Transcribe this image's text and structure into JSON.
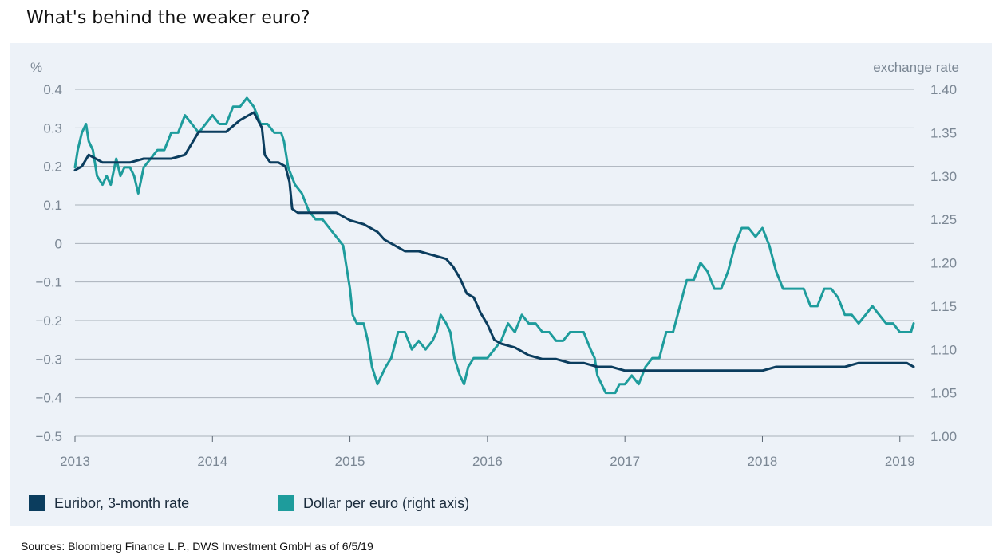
{
  "title": "What's behind the weaker euro?",
  "source": "Sources: Bloomberg Finance L.P., DWS Investment GmbH as of 6/5/19",
  "colors": {
    "euribor": "#0b3d5e",
    "dollar": "#1e9c9c",
    "panel": "#edf2f8",
    "grid": "#a9b1ba",
    "axis_text": "#7b8794"
  },
  "chart_data": {
    "type": "line",
    "left_axis": {
      "unit_label": "%",
      "ylim": [
        -0.5,
        0.4
      ],
      "ticks": [
        "0.4",
        "0.3",
        "0.2",
        "0.1",
        "0",
        "−0.1",
        "−0.2",
        "−0.3",
        "−0.4",
        "−0.5"
      ]
    },
    "right_axis": {
      "unit_label": "exchange rate",
      "ylim": [
        1.0,
        1.4
      ],
      "ticks": [
        "1.40",
        "1.35",
        "1.30",
        "1.25",
        "1.20",
        "1.15",
        "1.10",
        "1.05",
        "1.00"
      ]
    },
    "x_axis": {
      "xlim": [
        2013.0,
        2019.1
      ],
      "ticks": [
        "2013",
        "2014",
        "2015",
        "2016",
        "2017",
        "2018",
        "2019"
      ]
    },
    "legend_position": "bottom-left",
    "grid": true,
    "series": [
      {
        "name": "Euribor, 3-month rate",
        "axis": "left",
        "points": [
          [
            2013.0,
            0.19
          ],
          [
            2013.05,
            0.2
          ],
          [
            2013.1,
            0.23
          ],
          [
            2013.2,
            0.21
          ],
          [
            2013.3,
            0.21
          ],
          [
            2013.4,
            0.21
          ],
          [
            2013.5,
            0.22
          ],
          [
            2013.6,
            0.22
          ],
          [
            2013.7,
            0.22
          ],
          [
            2013.8,
            0.23
          ],
          [
            2013.85,
            0.26
          ],
          [
            2013.9,
            0.29
          ],
          [
            2014.0,
            0.29
          ],
          [
            2014.1,
            0.29
          ],
          [
            2014.2,
            0.32
          ],
          [
            2014.3,
            0.34
          ],
          [
            2014.33,
            0.32
          ],
          [
            2014.36,
            0.3
          ],
          [
            2014.38,
            0.23
          ],
          [
            2014.42,
            0.21
          ],
          [
            2014.48,
            0.21
          ],
          [
            2014.53,
            0.2
          ],
          [
            2014.56,
            0.16
          ],
          [
            2014.58,
            0.09
          ],
          [
            2014.62,
            0.08
          ],
          [
            2014.7,
            0.08
          ],
          [
            2014.8,
            0.08
          ],
          [
            2014.9,
            0.08
          ],
          [
            2014.95,
            0.07
          ],
          [
            2015.0,
            0.06
          ],
          [
            2015.1,
            0.05
          ],
          [
            2015.2,
            0.03
          ],
          [
            2015.25,
            0.01
          ],
          [
            2015.3,
            0.0
          ],
          [
            2015.4,
            -0.02
          ],
          [
            2015.5,
            -0.02
          ],
          [
            2015.6,
            -0.03
          ],
          [
            2015.7,
            -0.04
          ],
          [
            2015.75,
            -0.06
          ],
          [
            2015.8,
            -0.09
          ],
          [
            2015.85,
            -0.13
          ],
          [
            2015.9,
            -0.14
          ],
          [
            2015.95,
            -0.18
          ],
          [
            2016.0,
            -0.21
          ],
          [
            2016.05,
            -0.25
          ],
          [
            2016.1,
            -0.26
          ],
          [
            2016.2,
            -0.27
          ],
          [
            2016.25,
            -0.28
          ],
          [
            2016.3,
            -0.29
          ],
          [
            2016.4,
            -0.3
          ],
          [
            2016.5,
            -0.3
          ],
          [
            2016.6,
            -0.31
          ],
          [
            2016.7,
            -0.31
          ],
          [
            2016.8,
            -0.32
          ],
          [
            2016.9,
            -0.32
          ],
          [
            2017.0,
            -0.33
          ],
          [
            2017.2,
            -0.33
          ],
          [
            2017.4,
            -0.33
          ],
          [
            2017.6,
            -0.33
          ],
          [
            2017.8,
            -0.33
          ],
          [
            2018.0,
            -0.33
          ],
          [
            2018.1,
            -0.32
          ],
          [
            2018.2,
            -0.32
          ],
          [
            2018.4,
            -0.32
          ],
          [
            2018.6,
            -0.32
          ],
          [
            2018.7,
            -0.31
          ],
          [
            2018.8,
            -0.31
          ],
          [
            2018.9,
            -0.31
          ],
          [
            2019.0,
            -0.31
          ],
          [
            2019.05,
            -0.31
          ],
          [
            2019.1,
            -0.32
          ]
        ]
      },
      {
        "name": "Dollar per euro (right axis)",
        "axis": "right",
        "points": [
          [
            2013.0,
            1.31
          ],
          [
            2013.02,
            1.33
          ],
          [
            2013.05,
            1.35
          ],
          [
            2013.08,
            1.36
          ],
          [
            2013.1,
            1.34
          ],
          [
            2013.13,
            1.33
          ],
          [
            2013.16,
            1.3
          ],
          [
            2013.2,
            1.29
          ],
          [
            2013.23,
            1.3
          ],
          [
            2013.26,
            1.29
          ],
          [
            2013.3,
            1.32
          ],
          [
            2013.33,
            1.3
          ],
          [
            2013.36,
            1.31
          ],
          [
            2013.4,
            1.31
          ],
          [
            2013.43,
            1.3
          ],
          [
            2013.46,
            1.28
          ],
          [
            2013.5,
            1.31
          ],
          [
            2013.55,
            1.32
          ],
          [
            2013.6,
            1.33
          ],
          [
            2013.65,
            1.33
          ],
          [
            2013.7,
            1.35
          ],
          [
            2013.75,
            1.35
          ],
          [
            2013.8,
            1.37
          ],
          [
            2013.85,
            1.36
          ],
          [
            2013.9,
            1.35
          ],
          [
            2013.95,
            1.36
          ],
          [
            2014.0,
            1.37
          ],
          [
            2014.05,
            1.36
          ],
          [
            2014.1,
            1.36
          ],
          [
            2014.15,
            1.38
          ],
          [
            2014.2,
            1.38
          ],
          [
            2014.25,
            1.39
          ],
          [
            2014.3,
            1.38
          ],
          [
            2014.35,
            1.36
          ],
          [
            2014.4,
            1.36
          ],
          [
            2014.45,
            1.35
          ],
          [
            2014.5,
            1.35
          ],
          [
            2014.52,
            1.34
          ],
          [
            2014.55,
            1.31
          ],
          [
            2014.6,
            1.29
          ],
          [
            2014.65,
            1.28
          ],
          [
            2014.7,
            1.26
          ],
          [
            2014.75,
            1.25
          ],
          [
            2014.8,
            1.25
          ],
          [
            2014.85,
            1.24
          ],
          [
            2014.9,
            1.23
          ],
          [
            2014.95,
            1.22
          ],
          [
            2015.0,
            1.17
          ],
          [
            2015.02,
            1.14
          ],
          [
            2015.05,
            1.13
          ],
          [
            2015.1,
            1.13
          ],
          [
            2015.13,
            1.11
          ],
          [
            2015.16,
            1.08
          ],
          [
            2015.2,
            1.06
          ],
          [
            2015.23,
            1.07
          ],
          [
            2015.26,
            1.08
          ],
          [
            2015.3,
            1.09
          ],
          [
            2015.35,
            1.12
          ],
          [
            2015.4,
            1.12
          ],
          [
            2015.45,
            1.1
          ],
          [
            2015.5,
            1.11
          ],
          [
            2015.55,
            1.1
          ],
          [
            2015.6,
            1.11
          ],
          [
            2015.63,
            1.12
          ],
          [
            2015.66,
            1.14
          ],
          [
            2015.7,
            1.13
          ],
          [
            2015.73,
            1.12
          ],
          [
            2015.76,
            1.09
          ],
          [
            2015.8,
            1.07
          ],
          [
            2015.83,
            1.06
          ],
          [
            2015.86,
            1.08
          ],
          [
            2015.9,
            1.09
          ],
          [
            2015.95,
            1.09
          ],
          [
            2016.0,
            1.09
          ],
          [
            2016.05,
            1.1
          ],
          [
            2016.1,
            1.11
          ],
          [
            2016.15,
            1.13
          ],
          [
            2016.2,
            1.12
          ],
          [
            2016.25,
            1.14
          ],
          [
            2016.3,
            1.13
          ],
          [
            2016.35,
            1.13
          ],
          [
            2016.4,
            1.12
          ],
          [
            2016.45,
            1.12
          ],
          [
            2016.5,
            1.11
          ],
          [
            2016.55,
            1.11
          ],
          [
            2016.6,
            1.12
          ],
          [
            2016.65,
            1.12
          ],
          [
            2016.7,
            1.12
          ],
          [
            2016.75,
            1.1
          ],
          [
            2016.78,
            1.09
          ],
          [
            2016.8,
            1.07
          ],
          [
            2016.83,
            1.06
          ],
          [
            2016.86,
            1.05
          ],
          [
            2016.9,
            1.05
          ],
          [
            2016.93,
            1.05
          ],
          [
            2016.96,
            1.06
          ],
          [
            2017.0,
            1.06
          ],
          [
            2017.05,
            1.07
          ],
          [
            2017.1,
            1.06
          ],
          [
            2017.15,
            1.08
          ],
          [
            2017.2,
            1.09
          ],
          [
            2017.25,
            1.09
          ],
          [
            2017.3,
            1.12
          ],
          [
            2017.35,
            1.12
          ],
          [
            2017.4,
            1.15
          ],
          [
            2017.45,
            1.18
          ],
          [
            2017.5,
            1.18
          ],
          [
            2017.55,
            1.2
          ],
          [
            2017.6,
            1.19
          ],
          [
            2017.65,
            1.17
          ],
          [
            2017.7,
            1.17
          ],
          [
            2017.75,
            1.19
          ],
          [
            2017.8,
            1.22
          ],
          [
            2017.85,
            1.24
          ],
          [
            2017.9,
            1.24
          ],
          [
            2017.95,
            1.23
          ],
          [
            2018.0,
            1.24
          ],
          [
            2018.05,
            1.22
          ],
          [
            2018.1,
            1.19
          ],
          [
            2018.15,
            1.17
          ],
          [
            2018.2,
            1.17
          ],
          [
            2018.25,
            1.17
          ],
          [
            2018.3,
            1.17
          ],
          [
            2018.35,
            1.15
          ],
          [
            2018.4,
            1.15
          ],
          [
            2018.45,
            1.17
          ],
          [
            2018.5,
            1.17
          ],
          [
            2018.55,
            1.16
          ],
          [
            2018.6,
            1.14
          ],
          [
            2018.65,
            1.14
          ],
          [
            2018.7,
            1.13
          ],
          [
            2018.75,
            1.14
          ],
          [
            2018.8,
            1.15
          ],
          [
            2018.85,
            1.14
          ],
          [
            2018.9,
            1.13
          ],
          [
            2018.95,
            1.13
          ],
          [
            2019.0,
            1.12
          ],
          [
            2019.05,
            1.12
          ],
          [
            2019.08,
            1.12
          ],
          [
            2019.1,
            1.13
          ]
        ]
      }
    ]
  }
}
